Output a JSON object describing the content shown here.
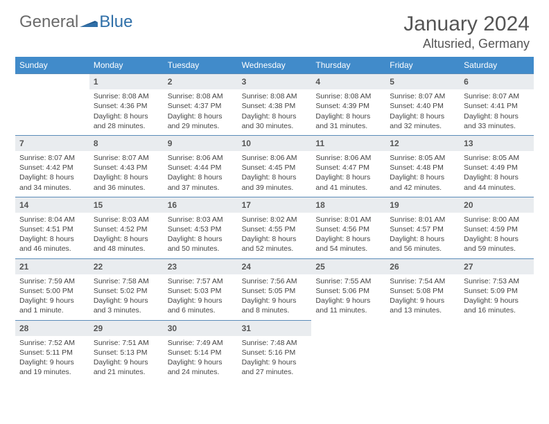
{
  "brand": {
    "general": "General",
    "blue": "Blue"
  },
  "title": "January 2024",
  "location": "Altusried, Germany",
  "dow": [
    "Sunday",
    "Monday",
    "Tuesday",
    "Wednesday",
    "Thursday",
    "Friday",
    "Saturday"
  ],
  "colors": {
    "header_bg": "#418bca",
    "daynum_bg": "#e9ecef",
    "border": "#5a8bb8",
    "text": "#444444",
    "title": "#555555",
    "logo_gray": "#6a6a6a",
    "logo_blue": "#2f6fa8"
  },
  "weeks": [
    [
      {
        "n": "",
        "empty": true
      },
      {
        "n": "1",
        "sr": "Sunrise: 8:08 AM",
        "ss": "Sunset: 4:36 PM",
        "dl": "Daylight: 8 hours and 28 minutes."
      },
      {
        "n": "2",
        "sr": "Sunrise: 8:08 AM",
        "ss": "Sunset: 4:37 PM",
        "dl": "Daylight: 8 hours and 29 minutes."
      },
      {
        "n": "3",
        "sr": "Sunrise: 8:08 AM",
        "ss": "Sunset: 4:38 PM",
        "dl": "Daylight: 8 hours and 30 minutes."
      },
      {
        "n": "4",
        "sr": "Sunrise: 8:08 AM",
        "ss": "Sunset: 4:39 PM",
        "dl": "Daylight: 8 hours and 31 minutes."
      },
      {
        "n": "5",
        "sr": "Sunrise: 8:07 AM",
        "ss": "Sunset: 4:40 PM",
        "dl": "Daylight: 8 hours and 32 minutes."
      },
      {
        "n": "6",
        "sr": "Sunrise: 8:07 AM",
        "ss": "Sunset: 4:41 PM",
        "dl": "Daylight: 8 hours and 33 minutes."
      }
    ],
    [
      {
        "n": "7",
        "sr": "Sunrise: 8:07 AM",
        "ss": "Sunset: 4:42 PM",
        "dl": "Daylight: 8 hours and 34 minutes."
      },
      {
        "n": "8",
        "sr": "Sunrise: 8:07 AM",
        "ss": "Sunset: 4:43 PM",
        "dl": "Daylight: 8 hours and 36 minutes."
      },
      {
        "n": "9",
        "sr": "Sunrise: 8:06 AM",
        "ss": "Sunset: 4:44 PM",
        "dl": "Daylight: 8 hours and 37 minutes."
      },
      {
        "n": "10",
        "sr": "Sunrise: 8:06 AM",
        "ss": "Sunset: 4:45 PM",
        "dl": "Daylight: 8 hours and 39 minutes."
      },
      {
        "n": "11",
        "sr": "Sunrise: 8:06 AM",
        "ss": "Sunset: 4:47 PM",
        "dl": "Daylight: 8 hours and 41 minutes."
      },
      {
        "n": "12",
        "sr": "Sunrise: 8:05 AM",
        "ss": "Sunset: 4:48 PM",
        "dl": "Daylight: 8 hours and 42 minutes."
      },
      {
        "n": "13",
        "sr": "Sunrise: 8:05 AM",
        "ss": "Sunset: 4:49 PM",
        "dl": "Daylight: 8 hours and 44 minutes."
      }
    ],
    [
      {
        "n": "14",
        "sr": "Sunrise: 8:04 AM",
        "ss": "Sunset: 4:51 PM",
        "dl": "Daylight: 8 hours and 46 minutes."
      },
      {
        "n": "15",
        "sr": "Sunrise: 8:03 AM",
        "ss": "Sunset: 4:52 PM",
        "dl": "Daylight: 8 hours and 48 minutes."
      },
      {
        "n": "16",
        "sr": "Sunrise: 8:03 AM",
        "ss": "Sunset: 4:53 PM",
        "dl": "Daylight: 8 hours and 50 minutes."
      },
      {
        "n": "17",
        "sr": "Sunrise: 8:02 AM",
        "ss": "Sunset: 4:55 PM",
        "dl": "Daylight: 8 hours and 52 minutes."
      },
      {
        "n": "18",
        "sr": "Sunrise: 8:01 AM",
        "ss": "Sunset: 4:56 PM",
        "dl": "Daylight: 8 hours and 54 minutes."
      },
      {
        "n": "19",
        "sr": "Sunrise: 8:01 AM",
        "ss": "Sunset: 4:57 PM",
        "dl": "Daylight: 8 hours and 56 minutes."
      },
      {
        "n": "20",
        "sr": "Sunrise: 8:00 AM",
        "ss": "Sunset: 4:59 PM",
        "dl": "Daylight: 8 hours and 59 minutes."
      }
    ],
    [
      {
        "n": "21",
        "sr": "Sunrise: 7:59 AM",
        "ss": "Sunset: 5:00 PM",
        "dl": "Daylight: 9 hours and 1 minute."
      },
      {
        "n": "22",
        "sr": "Sunrise: 7:58 AM",
        "ss": "Sunset: 5:02 PM",
        "dl": "Daylight: 9 hours and 3 minutes."
      },
      {
        "n": "23",
        "sr": "Sunrise: 7:57 AM",
        "ss": "Sunset: 5:03 PM",
        "dl": "Daylight: 9 hours and 6 minutes."
      },
      {
        "n": "24",
        "sr": "Sunrise: 7:56 AM",
        "ss": "Sunset: 5:05 PM",
        "dl": "Daylight: 9 hours and 8 minutes."
      },
      {
        "n": "25",
        "sr": "Sunrise: 7:55 AM",
        "ss": "Sunset: 5:06 PM",
        "dl": "Daylight: 9 hours and 11 minutes."
      },
      {
        "n": "26",
        "sr": "Sunrise: 7:54 AM",
        "ss": "Sunset: 5:08 PM",
        "dl": "Daylight: 9 hours and 13 minutes."
      },
      {
        "n": "27",
        "sr": "Sunrise: 7:53 AM",
        "ss": "Sunset: 5:09 PM",
        "dl": "Daylight: 9 hours and 16 minutes."
      }
    ],
    [
      {
        "n": "28",
        "sr": "Sunrise: 7:52 AM",
        "ss": "Sunset: 5:11 PM",
        "dl": "Daylight: 9 hours and 19 minutes."
      },
      {
        "n": "29",
        "sr": "Sunrise: 7:51 AM",
        "ss": "Sunset: 5:13 PM",
        "dl": "Daylight: 9 hours and 21 minutes."
      },
      {
        "n": "30",
        "sr": "Sunrise: 7:49 AM",
        "ss": "Sunset: 5:14 PM",
        "dl": "Daylight: 9 hours and 24 minutes."
      },
      {
        "n": "31",
        "sr": "Sunrise: 7:48 AM",
        "ss": "Sunset: 5:16 PM",
        "dl": "Daylight: 9 hours and 27 minutes."
      },
      {
        "n": "",
        "blank": true
      },
      {
        "n": "",
        "blank": true
      },
      {
        "n": "",
        "blank": true
      }
    ]
  ]
}
